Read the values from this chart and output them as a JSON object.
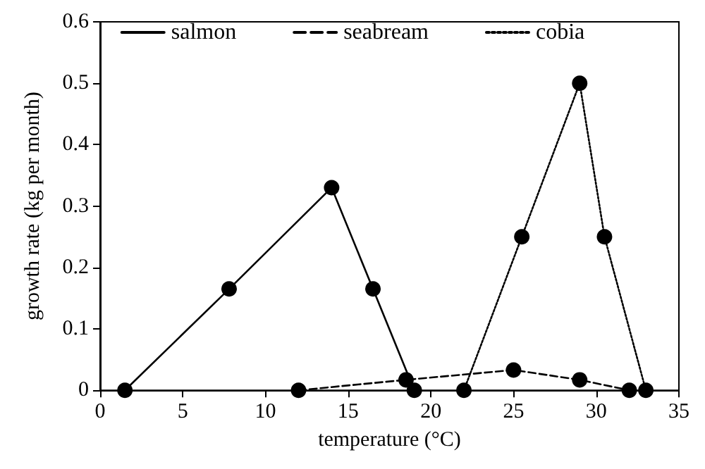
{
  "chart_data": {
    "type": "line",
    "xlabel": "temperature (°C)",
    "ylabel": "growth rate (kg per month)",
    "xlim": [
      0,
      35
    ],
    "xticks": [
      0,
      5,
      10,
      15,
      20,
      25,
      30,
      35
    ],
    "ylim": [
      0,
      0.6
    ],
    "yticks": [
      0,
      0.1,
      0.2,
      0.3,
      0.4,
      0.5,
      0.6
    ],
    "grid": false,
    "legend": "top",
    "marker": "circle",
    "series": [
      {
        "name": "salmon",
        "color": "#000000",
        "line_style": "solid",
        "x": [
          1.5,
          7.8,
          14,
          16.5,
          19
        ],
        "values": [
          0,
          0.165,
          0.33,
          0.165,
          0
        ]
      },
      {
        "name": "seabream",
        "color": "#000000",
        "line_style": "dashed",
        "x": [
          12,
          18.5,
          25,
          29,
          32
        ],
        "values": [
          0,
          0.017,
          0.033,
          0.017,
          0
        ]
      },
      {
        "name": "cobia",
        "color": "#000000",
        "line_style": "dotted",
        "x": [
          22,
          25.5,
          29,
          30.5,
          33
        ],
        "values": [
          0,
          0.25,
          0.5,
          0.25,
          0
        ]
      }
    ]
  }
}
